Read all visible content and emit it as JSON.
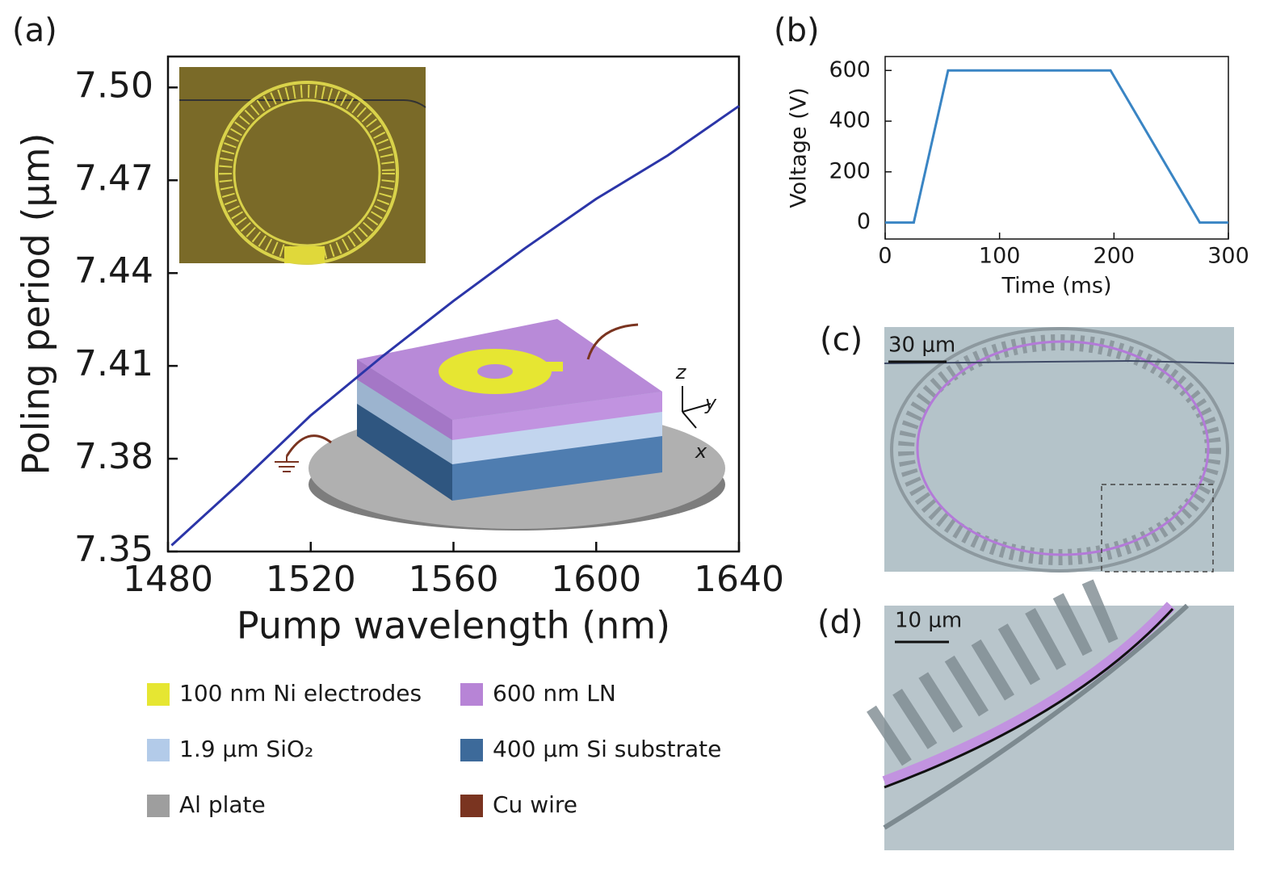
{
  "chart_data": [
    {
      "type": "line",
      "xlabel": "Pump wavelength (nm)",
      "ylabel": "Poling period (μm)",
      "x": [
        1481,
        1500,
        1520,
        1540,
        1560,
        1580,
        1600,
        1620,
        1640
      ],
      "values": [
        7.352,
        7.372,
        7.394,
        7.413,
        7.431,
        7.448,
        7.464,
        7.478,
        7.494
      ],
      "color": "#2b35a8",
      "xlim": [
        1480,
        1640
      ],
      "xticks": [
        1480,
        1520,
        1560,
        1600,
        1640
      ],
      "ylim": [
        7.35,
        7.51
      ],
      "yticks": [
        {
          "value": 7.5,
          "label": "7.50"
        },
        7.47,
        7.44,
        7.41,
        7.38,
        7.35
      ]
    },
    {
      "type": "line",
      "xlabel": "Time (ms)",
      "ylabel": "Voltage (V)",
      "x": [
        0,
        25,
        55,
        197,
        275,
        300
      ],
      "values": [
        0,
        0,
        600,
        600,
        0,
        0
      ],
      "color": "#3a85c4",
      "xlim": [
        0,
        300
      ],
      "xticks": [
        0,
        100,
        200,
        300
      ],
      "ylim": [
        -65,
        655
      ],
      "yticks": [
        0,
        200,
        400,
        600
      ]
    }
  ],
  "panel_labels": [
    "(a)",
    "(b)",
    "(c)",
    "(d)"
  ],
  "axis_letters": [
    "z",
    "y",
    "x"
  ],
  "scale_bars": [
    "30 μm",
    "10 μm"
  ],
  "legend": [
    {
      "label": "100 nm Ni electrodes",
      "color": "#e6e632"
    },
    {
      "label": "600 nm LN",
      "color": "#b784d6"
    },
    {
      "label": "1.9 μm SiO₂",
      "color": "#b3cbe9"
    },
    {
      "label": "400 μm Si substrate",
      "color": "#3d6a9a"
    },
    {
      "label": "Al plate",
      "color": "#9e9e9e"
    },
    {
      "label": "Cu wire",
      "color": "#7a3420"
    }
  ]
}
